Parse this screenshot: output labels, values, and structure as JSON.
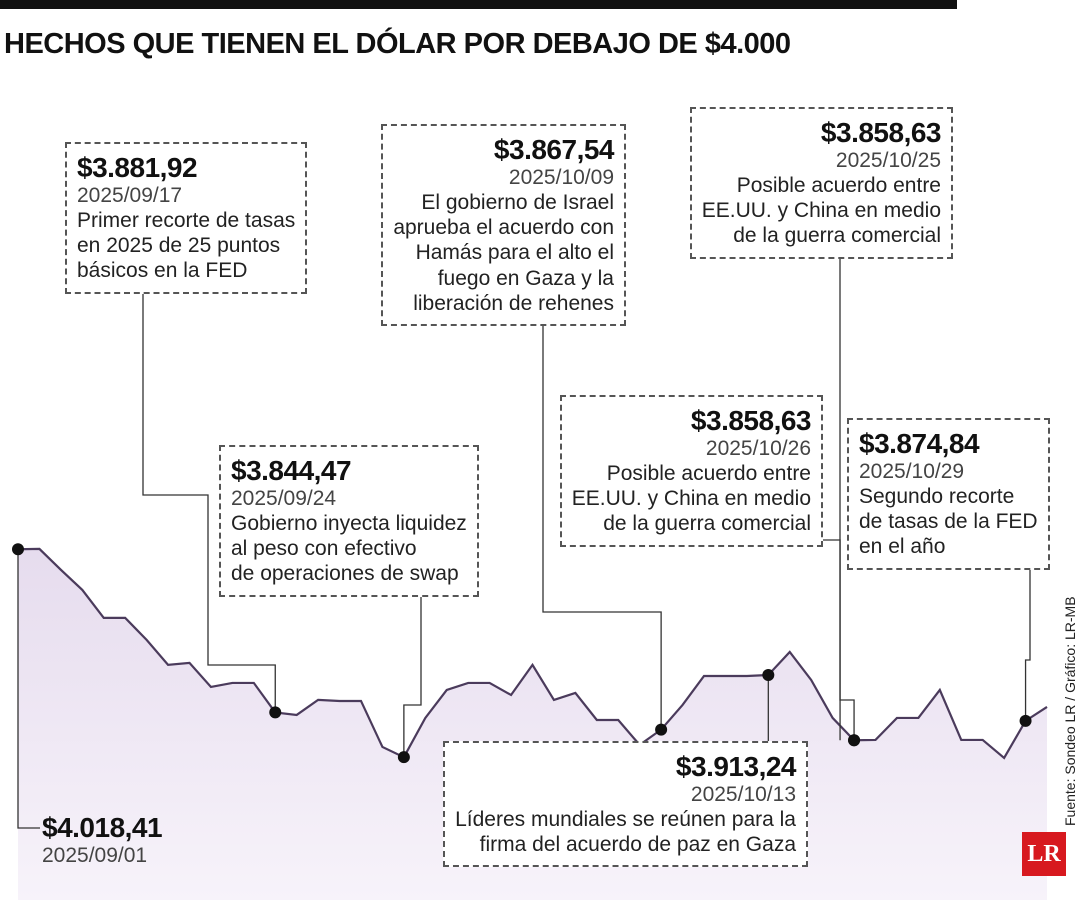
{
  "chart_data": {
    "type": "area",
    "title": "HECHOS QUE TIENEN EL DÓLAR POR DEBAJO DE $4.000",
    "values": [
      4018.41,
      4018.7,
      4001.2,
      3984.4,
      3961.0,
      3961.0,
      3942.6,
      3921.7,
      3923.3,
      3903.2,
      3906.6,
      3906.6,
      3881.92,
      3879.8,
      3892.4,
      3891.5,
      3891.5,
      3853.0,
      3844.47,
      3877.3,
      3900.7,
      3906.6,
      3906.6,
      3896.5,
      3921.7,
      3892.4,
      3898.2,
      3875.6,
      3875.6,
      3854.7,
      3867.54,
      3888.2,
      3912.4,
      3912.4,
      3912.4,
      3913.24,
      3932.5,
      3909.1,
      3877.3,
      3858.63,
      3858.9,
      3877.3,
      3877.3,
      3900.7,
      3858.9,
      3858.9,
      3843.8,
      3874.84,
      3886.5
    ],
    "color": "#4b3b5c",
    "fill": "#e6dcee",
    "ylim": [
      3725,
      4160
    ],
    "annotations": [
      {
        "value": 4018.41,
        "label": "$4.018,41",
        "date": "2025/09/01"
      },
      {
        "value": 3881.92,
        "label": "$3.881,92",
        "date": "2025/09/17",
        "lines": [
          "Primer recorte de tasas",
          "en 2025 de 25 puntos",
          "básicos en la FED"
        ]
      },
      {
        "value": 3844.47,
        "label": "$3.844,47",
        "date": "2025/09/24",
        "lines": [
          "Gobierno inyecta liquidez",
          "al peso con efectivo",
          "de operaciones de swap"
        ]
      },
      {
        "value": 3867.54,
        "label": "$3.867,54",
        "date": "2025/10/09",
        "lines": [
          "El gobierno de Israel",
          "aprueba el acuerdo con",
          "Hamás para el alto el",
          "fuego en Gaza y la",
          "liberación de rehenes"
        ]
      },
      {
        "value": 3913.24,
        "label": "$3.913,24",
        "date": "2025/10/13",
        "lines": [
          "Líderes mundiales se reúnen para la",
          "firma del acuerdo de paz en Gaza"
        ]
      },
      {
        "value": 3858.63,
        "label": "$3.858,63",
        "date": "2025/10/25",
        "lines": [
          "Posible acuerdo entre",
          "EE.UU. y China en medio",
          "de la guerra comercial"
        ]
      },
      {
        "value": 3858.63,
        "label": "$3.858,63",
        "date": "2025/10/26",
        "lines": [
          "Posible acuerdo entre",
          "EE.UU. y China en medio",
          "de la guerra comercial"
        ]
      },
      {
        "value": 3874.84,
        "label": "$3.874,84",
        "date": "2025/10/29",
        "lines": [
          "Segundo recorte",
          "de tasas de la FED",
          "en el año"
        ]
      }
    ],
    "source": "Fuente: Sondeo LR / Gráfico: LR-MB",
    "logo": "LR"
  }
}
